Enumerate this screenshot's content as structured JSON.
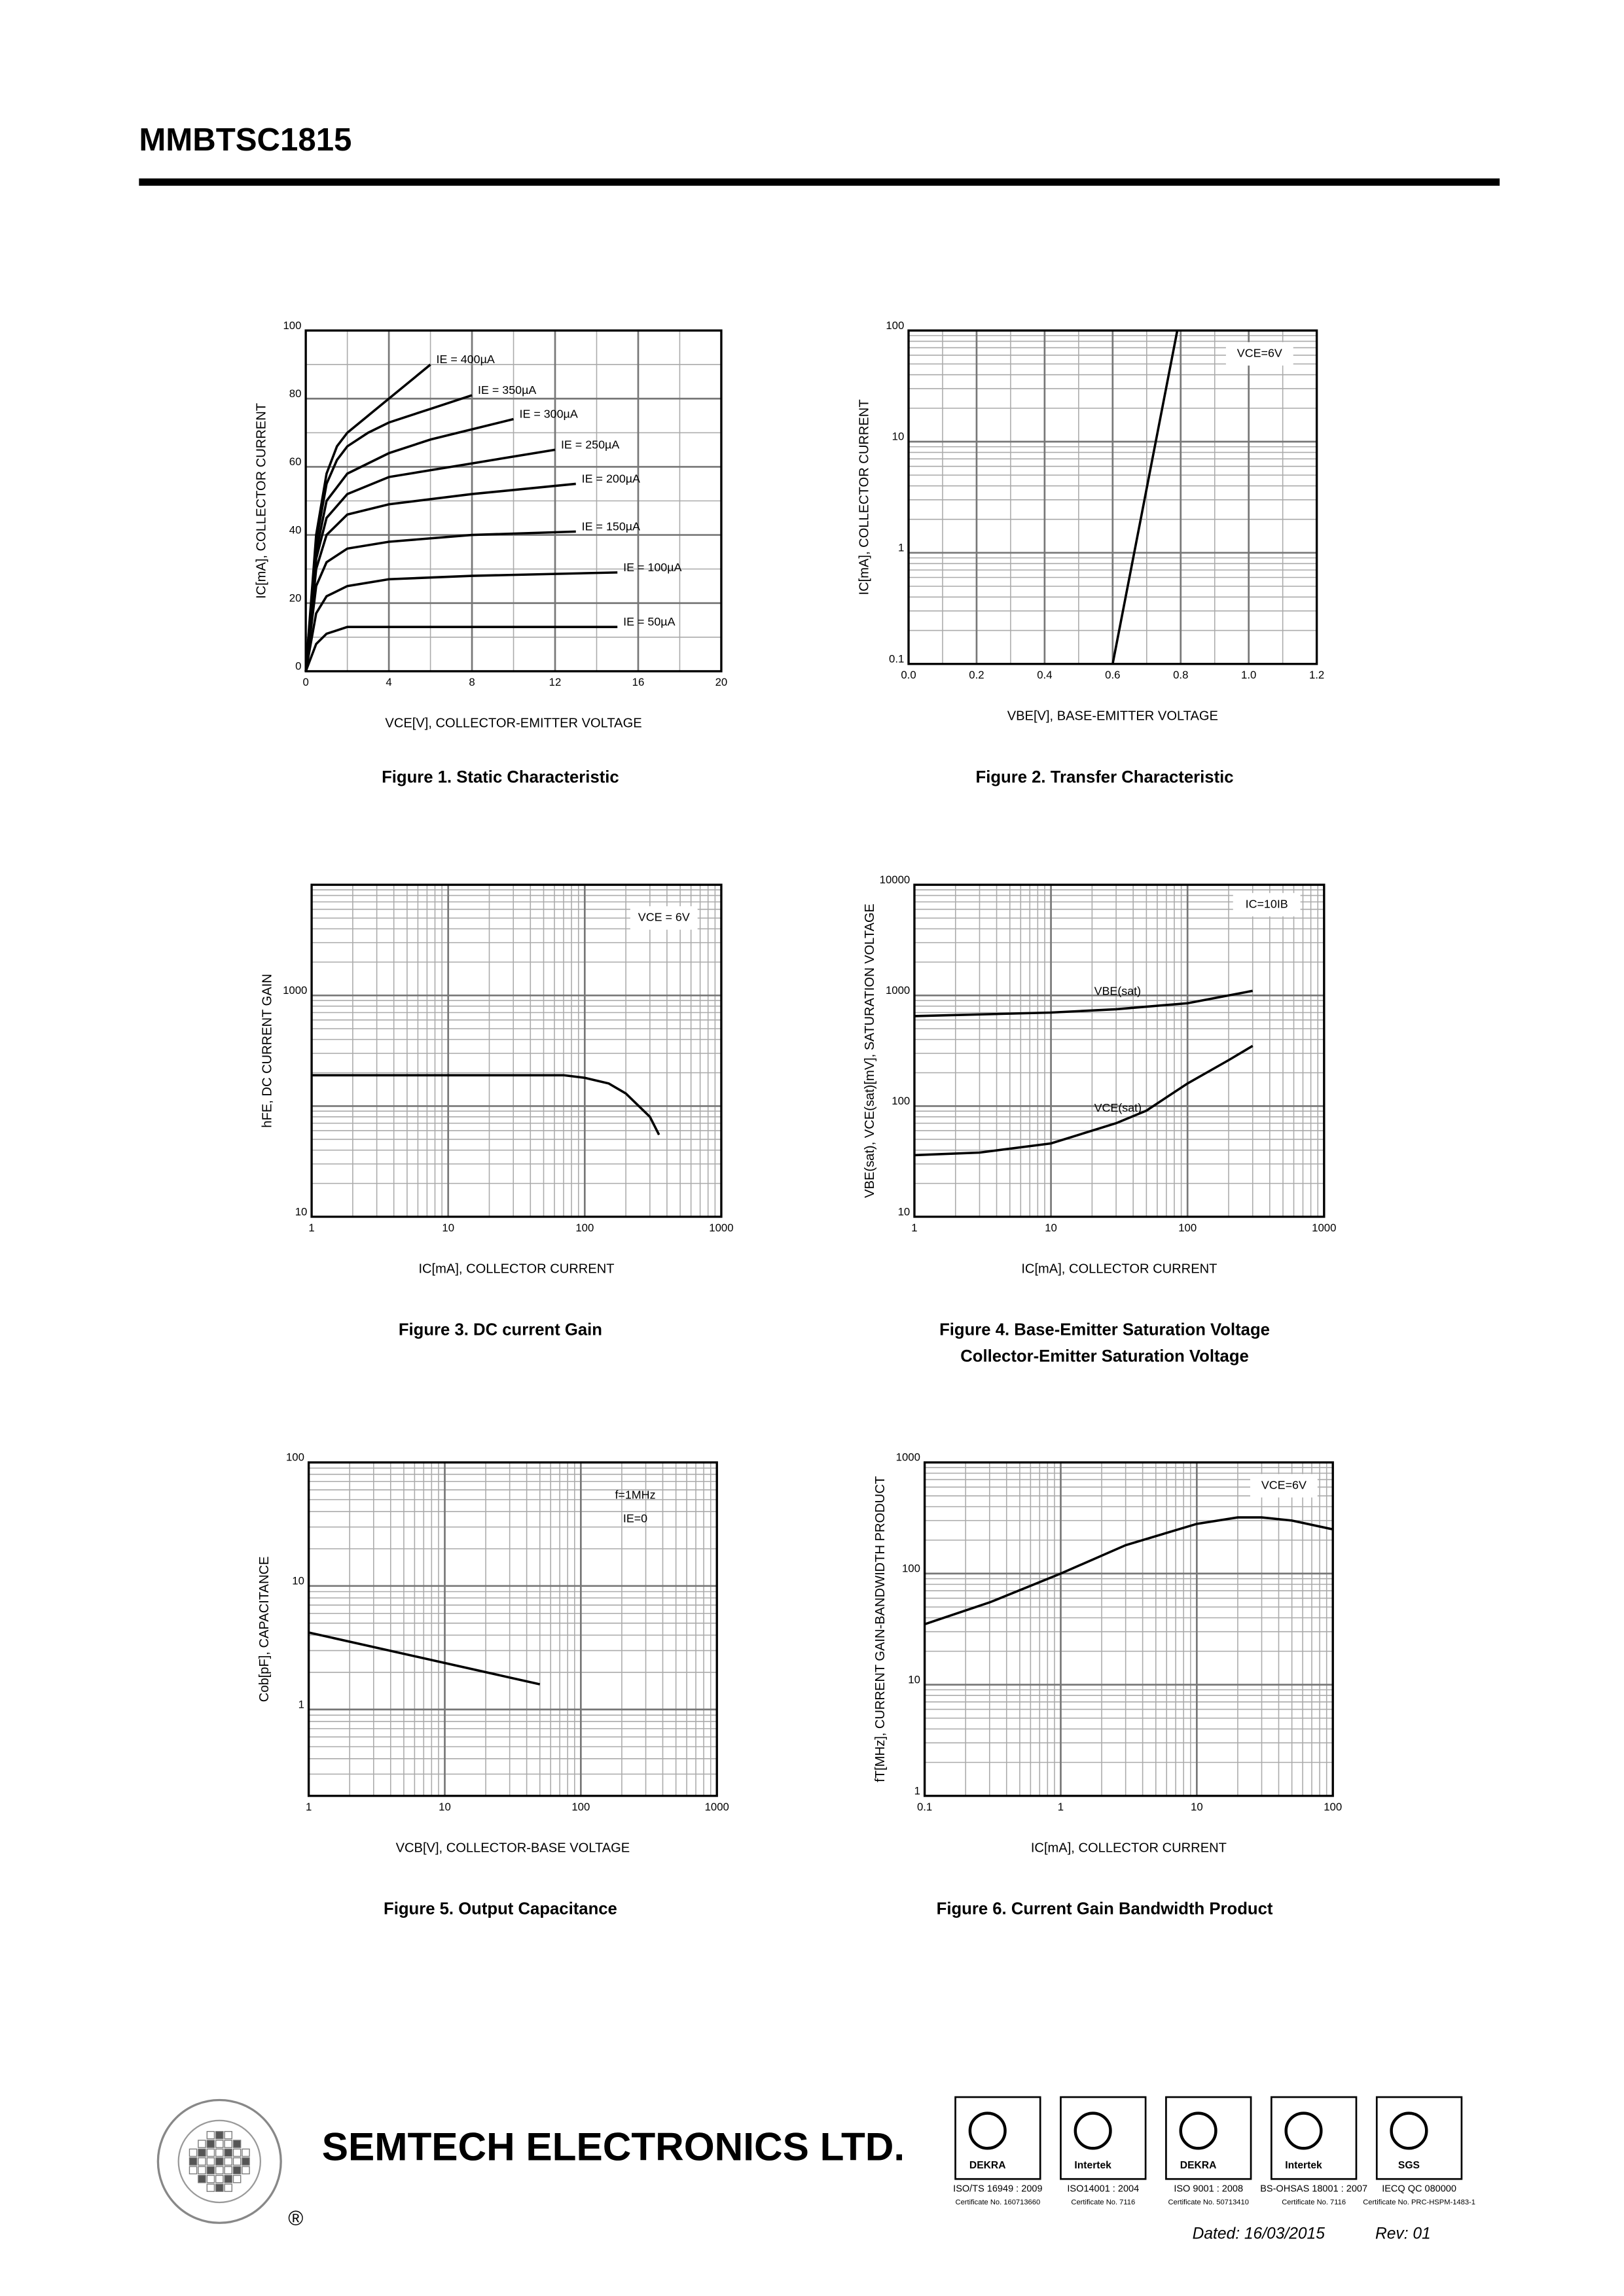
{
  "header": {
    "title": "MMBTSC1815"
  },
  "chart_data": [
    {
      "type": "line",
      "title": "Figure 1. Static Characteristic",
      "x_label": "VCE[V], COLLECTOR-EMITTER VOLTAGE",
      "y_label": "IC[mA], COLLECTOR CURRENT",
      "xlim": [
        0,
        20
      ],
      "ylim": [
        0,
        100
      ],
      "xticks": [
        0,
        4,
        8,
        12,
        16,
        20
      ],
      "yticks": [
        0,
        20,
        40,
        60,
        80,
        100
      ],
      "grid": true,
      "xlog": false,
      "ylog": false,
      "series": [
        {
          "name": "IE = 400µA",
          "color": "#000000",
          "x": [
            0,
            0.5,
            1,
            1.5,
            2,
            3,
            4,
            5,
            6
          ],
          "values": [
            0,
            40,
            58,
            66,
            70,
            75,
            80,
            85,
            90
          ]
        },
        {
          "name": "IE = 350µA",
          "color": "#000000",
          "x": [
            0,
            0.5,
            1,
            1.5,
            2,
            3,
            4,
            6,
            8
          ],
          "values": [
            0,
            38,
            55,
            62,
            66,
            70,
            73,
            77,
            81
          ]
        },
        {
          "name": "IE = 300µA",
          "color": "#000000",
          "x": [
            0,
            0.5,
            1,
            2,
            4,
            6,
            8,
            10
          ],
          "values": [
            0,
            35,
            50,
            58,
            64,
            68,
            71,
            74
          ]
        },
        {
          "name": "IE = 250µA",
          "color": "#000000",
          "x": [
            0,
            0.5,
            1,
            2,
            4,
            8,
            12
          ],
          "values": [
            0,
            33,
            45,
            52,
            57,
            61,
            65
          ]
        },
        {
          "name": "IE = 200µA",
          "color": "#000000",
          "x": [
            0,
            0.5,
            1,
            2,
            4,
            8,
            13
          ],
          "values": [
            0,
            30,
            40,
            46,
            49,
            52,
            55
          ]
        },
        {
          "name": "IE = 150µA",
          "color": "#000000",
          "x": [
            0,
            0.5,
            1,
            2,
            4,
            8,
            13
          ],
          "values": [
            0,
            25,
            32,
            36,
            38,
            40,
            41
          ]
        },
        {
          "name": "IE = 100µA",
          "color": "#000000",
          "x": [
            0,
            0.5,
            1,
            2,
            4,
            8,
            15
          ],
          "values": [
            0,
            17,
            22,
            25,
            27,
            28,
            29
          ]
        },
        {
          "name": "IE = 50µA",
          "color": "#000000",
          "x": [
            0,
            0.5,
            1,
            2,
            4,
            15
          ],
          "values": [
            0,
            8,
            11,
            13,
            13,
            13
          ]
        }
      ],
      "annotations": []
    },
    {
      "type": "line",
      "title": "Figure 2. Transfer Characteristic",
      "x_label": "VBE[V], BASE-EMITTER VOLTAGE",
      "y_label": "IC[mA], COLLECTOR CURRENT",
      "xlim": [
        0,
        1.2
      ],
      "ylim": [
        0.1,
        100
      ],
      "xticks": [
        {
          "value": 0,
          "label": "0.0"
        },
        0.2,
        0.4,
        0.6,
        0.8,
        {
          "value": 1,
          "label": "1.0"
        },
        1.2
      ],
      "yticks": [
        0.1,
        1,
        10,
        100
      ],
      "grid": true,
      "xlog": false,
      "ylog": true,
      "series": [
        {
          "name": "IC",
          "color": "#000000",
          "x": [
            0.6,
            0.79
          ],
          "values": [
            0.1,
            100
          ]
        }
      ],
      "annotations": [
        "VCE=6V"
      ]
    },
    {
      "type": "line",
      "title": "Figure 3. DC current Gain",
      "x_label": "IC[mA], COLLECTOR CURRENT",
      "y_label": "hFE, DC CURRENT GAIN",
      "xlim": [
        1,
        1000
      ],
      "ylim": [
        10,
        10000
      ],
      "xticks": [
        1,
        10,
        100,
        1000
      ],
      "yticks": [
        10,
        1000
      ],
      "grid": true,
      "xlog": true,
      "ylog": true,
      "series": [
        {
          "name": "hFE",
          "color": "#000000",
          "x": [
            1,
            10,
            70,
            100,
            150,
            200,
            300,
            350
          ],
          "values": [
            190,
            190,
            190,
            180,
            160,
            130,
            80,
            55
          ]
        }
      ],
      "annotations": [
        "VCE = 6V"
      ]
    },
    {
      "type": "line",
      "title": "Figure 4. Base-Emitter Saturation Voltage",
      "subtitle": "Collector-Emitter Saturation Voltage",
      "x_label": "IC[mA], COLLECTOR CURRENT",
      "y_label": "VBE(sat), VCE(sat)[mV], SATURATION VOLTAGE",
      "xlim": [
        1,
        1000
      ],
      "ylim": [
        10,
        10000
      ],
      "xticks": [
        1,
        10,
        100,
        1000
      ],
      "yticks": [
        10,
        100,
        1000,
        10000
      ],
      "grid": true,
      "xlog": true,
      "ylog": true,
      "series": [
        {
          "name": "VBE(sat)",
          "color": "#000000",
          "x": [
            1,
            10,
            30,
            100,
            300
          ],
          "values": [
            650,
            700,
            750,
            850,
            1100
          ]
        },
        {
          "name": "VCE(sat)",
          "color": "#000000",
          "x": [
            1,
            3,
            10,
            30,
            50,
            100,
            200,
            300
          ],
          "values": [
            36,
            38,
            46,
            70,
            91,
            160,
            260,
            350
          ]
        }
      ],
      "annotations": [
        "IC=10IB"
      ]
    },
    {
      "type": "line",
      "title": "Figure 5. Output Capacitance",
      "x_label": "VCB[V], COLLECTOR-BASE VOLTAGE",
      "y_label": "Cob[pF], CAPACITANCE",
      "xlim": [
        1,
        1000
      ],
      "ylim": [
        0.2,
        100
      ],
      "xticks": [
        1,
        10,
        100,
        1000
      ],
      "yticks": [
        1,
        10,
        100
      ],
      "grid": true,
      "xlog": true,
      "ylog": true,
      "series": [
        {
          "name": "Cob",
          "color": "#000000",
          "x": [
            1,
            50
          ],
          "values": [
            4.2,
            1.6
          ]
        }
      ],
      "annotations": [
        "f=1MHz",
        "IE=0"
      ]
    },
    {
      "type": "line",
      "title": "Figure 6. Current Gain Bandwidth Product",
      "x_label": "IC[mA], COLLECTOR CURRENT",
      "y_label": "fT[MHz], CURRENT GAIN-BANDWIDTH PRODUCT",
      "xlim": [
        0.1,
        100
      ],
      "ylim": [
        1,
        1000
      ],
      "xticks": [
        0.1,
        1,
        10,
        100
      ],
      "yticks": [
        1,
        10,
        100,
        1000
      ],
      "grid": true,
      "xlog": true,
      "ylog": true,
      "series": [
        {
          "name": "fT",
          "color": "#000000",
          "x": [
            0.1,
            0.3,
            1,
            3,
            10,
            20,
            30,
            50,
            100
          ],
          "values": [
            35,
            55,
            100,
            180,
            280,
            320,
            320,
            300,
            250
          ]
        }
      ],
      "annotations": [
        "VCE=6V"
      ]
    }
  ],
  "footer": {
    "company": "SEMTECH ELECTRONICS LTD.",
    "registered": "®",
    "certifications": [
      {
        "logo": "DEKRA",
        "standard": "ISO/TS 16949 : 2009",
        "certificate": "Certificate No. 160713660"
      },
      {
        "logo": "Intertek",
        "standard": "ISO14001 : 2004",
        "certificate": "Certificate No. 7116"
      },
      {
        "logo": "DEKRA",
        "standard": "ISO 9001 : 2008",
        "certificate": "Certificate No. 50713410"
      },
      {
        "logo": "Intertek",
        "standard": "BS-OHSAS 18001 : 2007",
        "certificate": "Certificate No. 7116"
      },
      {
        "logo": "SGS",
        "standard": "IECQ QC 080000",
        "certificate": "Certificate No. PRC-HSPM-1483-1"
      }
    ],
    "dated": "Dated: 16/03/2015",
    "revision": "Rev: 01"
  }
}
